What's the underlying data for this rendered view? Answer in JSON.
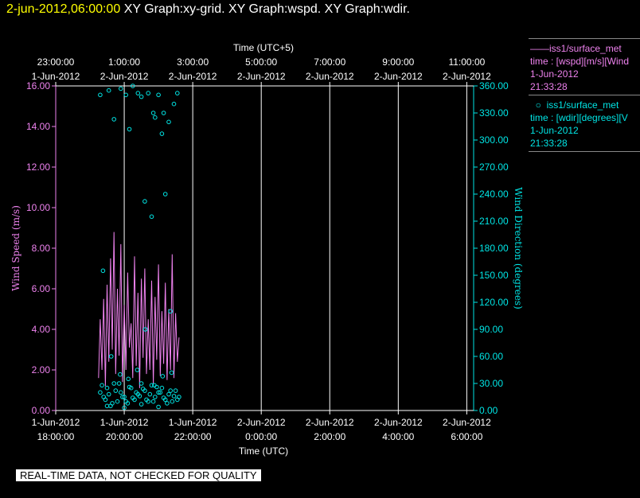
{
  "header": {
    "datetime": "2-jun-2012,06:00:00",
    "title": "XY Graph:xy-grid.  XY Graph:wspd.  XY Graph:wdir."
  },
  "legend": {
    "series1_name": "iss1/surface_met",
    "series1_desc": "time : [wspd][m/s][Wind",
    "series1_date": "1-Jun-2012",
    "series1_time": "21:33:28",
    "series2_name": "iss1/surface_met",
    "series2_desc": "time : [wdir][degrees][V",
    "series2_date": "1-Jun-2012",
    "series2_time": "21:33:28"
  },
  "footer": {
    "quality_note": "REAL-TIME DATA, NOT CHECKED FOR QUALITY"
  },
  "colors": {
    "wind_speed": "#ee82ee",
    "wind_direction": "#00e5e5",
    "header_date": "#ffff00",
    "background": "#000000"
  },
  "chart_data": {
    "type": "line",
    "top_axis_title": "Time (UTC+5)",
    "bottom_axis_title": "Time (UTC)",
    "left_axis_title": "Wind Speed (m/s)",
    "right_axis_title": "Wind Direction (degrees)",
    "x_range_hours_utc": [
      18.0,
      30.2
    ],
    "top_ticks": [
      {
        "t": 18,
        "time": "23:00:00",
        "date": "1-Jun-2012"
      },
      {
        "t": 20,
        "time": "1:00:00",
        "date": "2-Jun-2012"
      },
      {
        "t": 22,
        "time": "3:00:00",
        "date": "2-Jun-2012"
      },
      {
        "t": 24,
        "time": "5:00:00",
        "date": "2-Jun-2012"
      },
      {
        "t": 26,
        "time": "7:00:00",
        "date": "2-Jun-2012"
      },
      {
        "t": 28,
        "time": "9:00:00",
        "date": "2-Jun-2012"
      },
      {
        "t": 30,
        "time": "11:00:00",
        "date": "2-Jun-2012"
      }
    ],
    "bottom_ticks": [
      {
        "t": 18,
        "date": "1-Jun-2012",
        "time": "18:00:00"
      },
      {
        "t": 20,
        "date": "1-Jun-2012",
        "time": "20:00:00"
      },
      {
        "t": 22,
        "date": "1-Jun-2012",
        "time": "22:00:00"
      },
      {
        "t": 24,
        "date": "2-Jun-2012",
        "time": "0:00:00"
      },
      {
        "t": 26,
        "date": "2-Jun-2012",
        "time": "2:00:00"
      },
      {
        "t": 28,
        "date": "2-Jun-2012",
        "time": "4:00:00"
      },
      {
        "t": 30,
        "date": "2-Jun-2012",
        "time": "6:00:00"
      }
    ],
    "left_ylim": [
      0,
      16
    ],
    "left_ticks": [
      "0.00",
      "2.00",
      "4.00",
      "6.00",
      "8.00",
      "10.00",
      "12.00",
      "14.00",
      "16.00"
    ],
    "right_ylim": [
      0,
      360
    ],
    "right_ticks": [
      "0.00",
      "30.00",
      "60.00",
      "90.00",
      "120.00",
      "150.00",
      "180.00",
      "210.00",
      "240.00",
      "270.00",
      "300.00",
      "330.00",
      "360.00"
    ],
    "grid": true,
    "series": [
      {
        "name": "iss1/surface_met",
        "quantity": "wspd",
        "axis": "left",
        "style": "line",
        "x": [
          19.25,
          19.3,
          19.35,
          19.4,
          19.45,
          19.5,
          19.55,
          19.6,
          19.65,
          19.7,
          19.75,
          19.8,
          19.85,
          19.9,
          19.95,
          20.0,
          20.05,
          20.1,
          20.15,
          20.2,
          20.25,
          20.3,
          20.35,
          20.4,
          20.45,
          20.5,
          20.55,
          20.6,
          20.65,
          20.7,
          20.75,
          20.8,
          20.85,
          20.9,
          20.95,
          21.0,
          21.05,
          21.1,
          21.15,
          21.2,
          21.25,
          21.3,
          21.35,
          21.4,
          21.45,
          21.5,
          21.55,
          21.6
        ],
        "y": [
          1.6,
          4.5,
          2.0,
          5.5,
          1.2,
          6.2,
          2.4,
          7.5,
          3.0,
          8.8,
          1.8,
          6.0,
          2.7,
          8.2,
          1.4,
          5.2,
          2.0,
          6.8,
          3.1,
          4.3,
          1.6,
          7.6,
          2.2,
          5.8,
          1.1,
          6.5,
          2.6,
          7.0,
          1.8,
          4.5,
          2.0,
          6.4,
          1.3,
          5.6,
          2.5,
          7.2,
          1.7,
          4.9,
          2.3,
          6.3,
          1.5,
          5.0,
          2.0,
          7.7,
          1.6,
          4.8,
          2.4,
          3.6
        ]
      },
      {
        "name": "iss1/surface_met",
        "quantity": "wdir",
        "axis": "right",
        "style": "scatter",
        "x": [
          19.3,
          19.55,
          19.9,
          20.05,
          20.25,
          20.4,
          20.5,
          20.7,
          20.85,
          20.9,
          21.0,
          21.15,
          21.3,
          21.45,
          21.55,
          19.7,
          20.15,
          20.6,
          21.1,
          21.2,
          20.8,
          21.35,
          19.3,
          19.4,
          19.5,
          19.6,
          19.7,
          19.8,
          19.9,
          20.0,
          20.1,
          20.2,
          20.3,
          20.4,
          20.5,
          20.6,
          20.7,
          20.8,
          20.9,
          21.0,
          21.1,
          21.2,
          21.3,
          21.4,
          21.5,
          21.6,
          19.35,
          19.45,
          19.55,
          19.65,
          19.75,
          19.85,
          19.95,
          20.05,
          20.15,
          20.25,
          20.35,
          20.45,
          20.55,
          20.65,
          20.75,
          20.85,
          20.95,
          21.05,
          21.15,
          21.25,
          21.35,
          21.45,
          21.55,
          19.38,
          19.62,
          19.88,
          20.12,
          20.38,
          20.62,
          20.88,
          21.12,
          21.38,
          19.5,
          20.0,
          20.5,
          21.0
        ],
        "y": [
          350,
          355,
          357,
          350,
          360,
          352,
          348,
          352,
          330,
          325,
          350,
          330,
          320,
          340,
          352,
          323,
          312,
          232,
          307,
          240,
          215,
          110,
          20,
          15,
          25,
          5,
          30,
          10,
          20,
          15,
          8,
          25,
          12,
          18,
          30,
          22,
          10,
          28,
          15,
          20,
          25,
          12,
          18,
          10,
          22,
          15,
          28,
          12,
          18,
          8,
          22,
          30,
          15,
          10,
          26,
          14,
          20,
          16,
          24,
          12,
          18,
          10,
          26,
          20,
          14,
          8,
          22,
          16,
          12,
          155,
          60,
          40,
          35,
          45,
          90,
          28,
          38,
          42,
          5,
          3,
          7,
          4
        ]
      }
    ]
  }
}
